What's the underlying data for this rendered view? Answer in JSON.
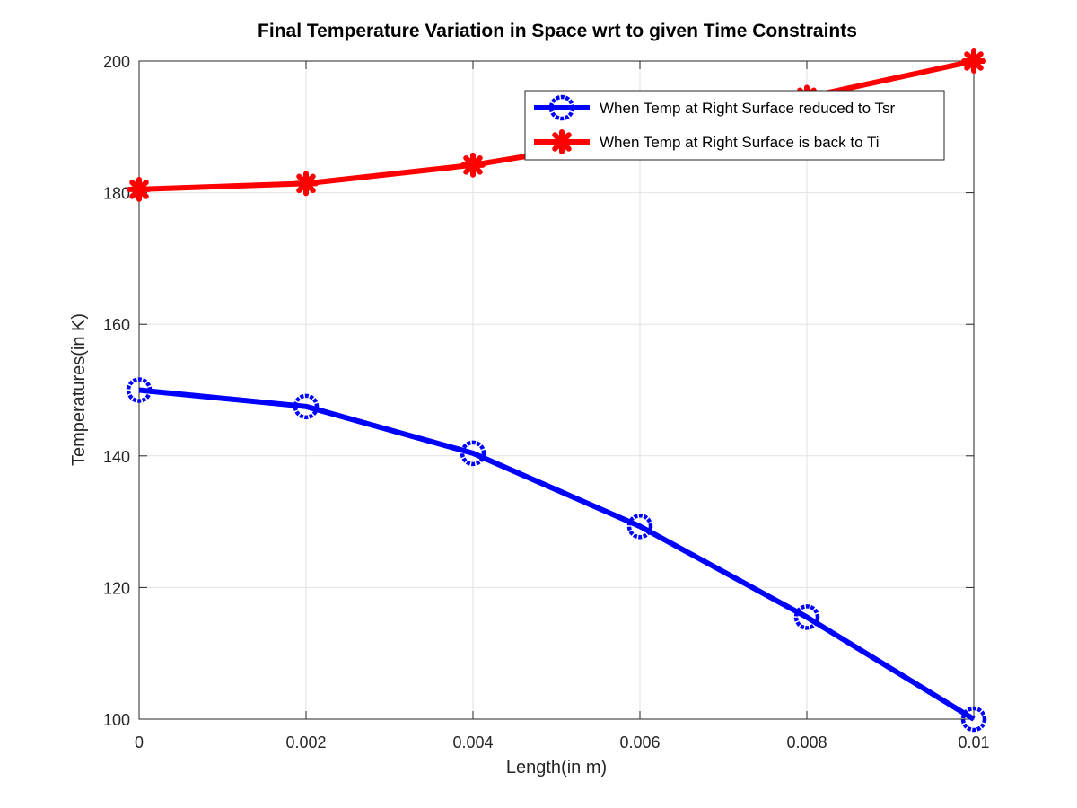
{
  "chart_data": {
    "type": "line",
    "title": "Final Temperature Variation in Space wrt to given Time Constraints",
    "xlabel": "Length(in m)",
    "ylabel": "Temperatures(in K)",
    "xlim": [
      0,
      0.01
    ],
    "ylim": [
      100,
      200
    ],
    "xticks": [
      "0",
      "0.002",
      "0.004",
      "0.006",
      "0.008",
      "0.01"
    ],
    "yticks": [
      "100",
      "120",
      "140",
      "160",
      "180",
      "200"
    ],
    "grid": true,
    "legend_position": "top-right",
    "x": [
      0,
      0.002,
      0.004,
      0.006,
      0.008,
      0.01
    ],
    "series": [
      {
        "name": "When Temp at Right Surface reduced to Tsr",
        "values": [
          150,
          147.5,
          140.4,
          129.3,
          115.5,
          100
        ],
        "color": "#0000ff",
        "marker": "circle"
      },
      {
        "name": "When Temp at Right Surface is back to Ti",
        "values": [
          180.5,
          181.4,
          184.2,
          188.4,
          194.5,
          200
        ],
        "color": "#ff0000",
        "marker": "star"
      }
    ]
  }
}
